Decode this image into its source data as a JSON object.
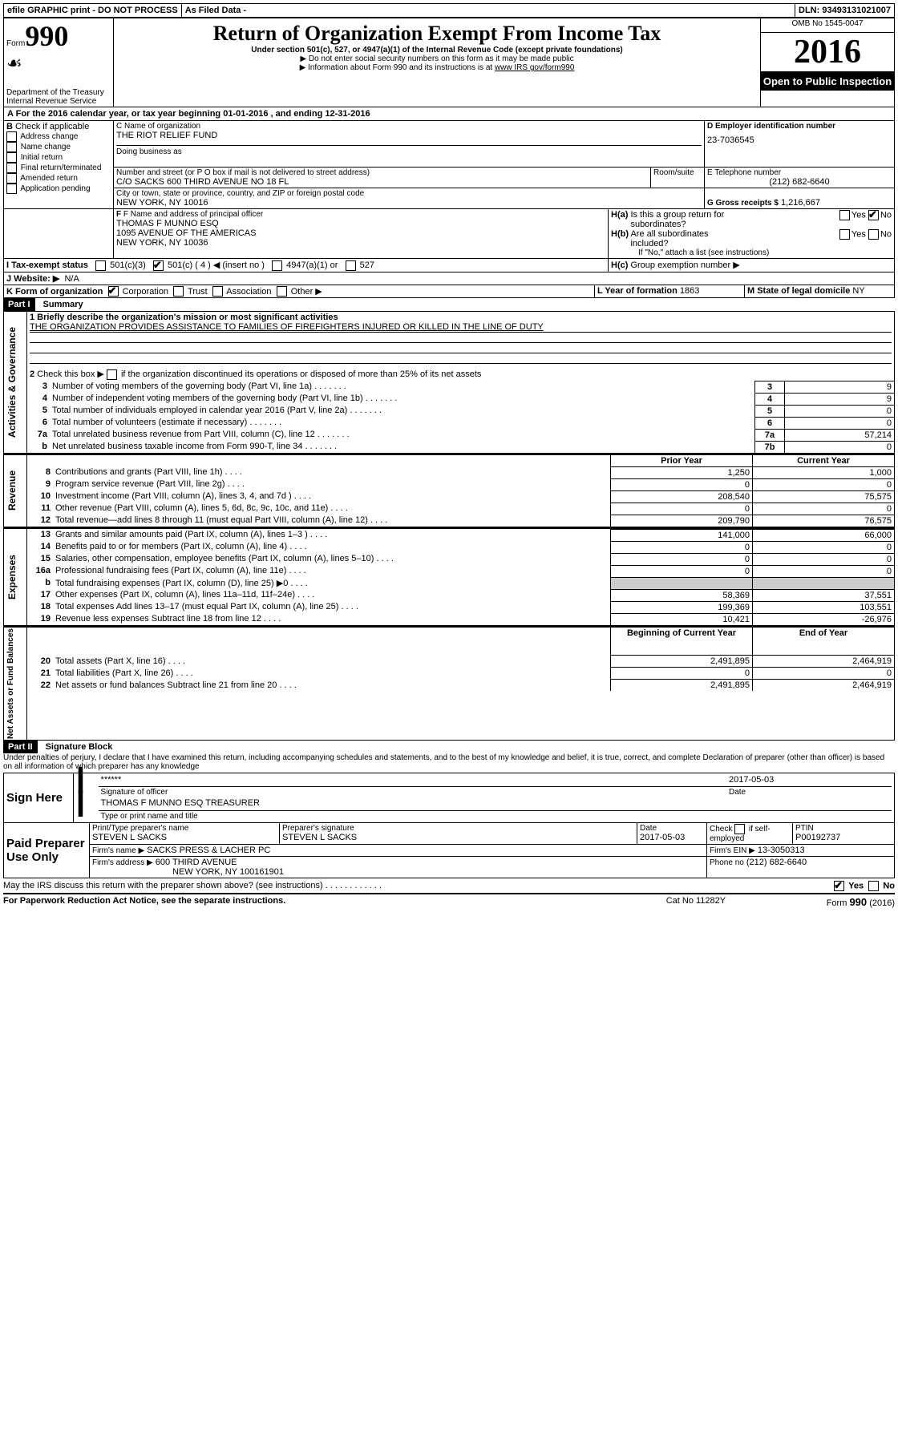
{
  "top": {
    "efile": "efile GRAPHIC print - DO NOT PROCESS",
    "asfiled": "As Filed Data - ",
    "dln_label": "DLN:",
    "dln": "93493131021007"
  },
  "hdr": {
    "form": "Form",
    "form_no": "990",
    "dept1": "Department of the Treasury",
    "dept2": "Internal Revenue Service",
    "title": "Return of Organization Exempt From Income Tax",
    "sub1": "Under section 501(c), 527, or 4947(a)(1) of the Internal Revenue Code (except private foundations)",
    "sub2": "▶ Do not enter social security numbers on this form as it may be made public",
    "sub3_pre": "▶ Information about Form 990 and its instructions is at ",
    "sub3_link": "www IRS gov/form990",
    "omb": "OMB No  1545-0047",
    "year": "2016",
    "open": "Open to Public Inspection"
  },
  "A": {
    "text": "For the 2016 calendar year, or tax year beginning 01-01-2016   , and ending 12-31-2016"
  },
  "B": {
    "label": "B",
    "check": "Check if applicable",
    "opts": [
      "Address change",
      "Name change",
      "Initial return",
      "Final return/terminated",
      "Amended return",
      "Application pending"
    ]
  },
  "C": {
    "name_lbl": "C Name of organization",
    "name": "THE RIOT RELIEF FUND",
    "dba_lbl": "Doing business as",
    "addr_lbl": "Number and street (or P O  box if mail is not delivered to street address)",
    "room_lbl": "Room/suite",
    "addr": "C/O SACKS 600 THIRD AVENUE NO 18 FL",
    "city_lbl": "City or town, state or province, country, and ZIP or foreign postal code",
    "city": "NEW YORK, NY  10016"
  },
  "D": {
    "lbl": "D Employer identification number",
    "val": "23-7036545"
  },
  "E": {
    "lbl": "E Telephone number",
    "val": "(212) 682-6640"
  },
  "G": {
    "lbl": "G Gross receipts $",
    "val": "1,216,667"
  },
  "F": {
    "lbl": "F  Name and address of principal officer",
    "l1": "THOMAS F MUNNO ESQ",
    "l2": "1095 AVENUE OF THE AMERICAS",
    "l3": "NEW YORK, NY  10036"
  },
  "H": {
    "a": "H(a)  Is this a group return for subordinates?",
    "b": "H(b)  Are all subordinates included?",
    "note": "If \"No,\" attach a list  (see instructions)",
    "c": "H(c)  Group exemption number ▶",
    "yes": "Yes",
    "no": "No"
  },
  "I": {
    "lbl": "I   Tax-exempt status",
    "o1": "501(c)(3)",
    "o2": "501(c) ( 4 ) ◀ (insert no )",
    "o3": "4947(a)(1) or",
    "o4": "527"
  },
  "J": {
    "lbl": "J   Website: ▶",
    "val": "N/A"
  },
  "K": {
    "lbl": "K Form of organization",
    "o1": "Corporation",
    "o2": "Trust",
    "o3": "Association",
    "o4": "Other ▶"
  },
  "L": {
    "lbl": "L Year of formation",
    "val": "1863"
  },
  "M": {
    "lbl": "M State of legal domicile",
    "val": "NY"
  },
  "partI": {
    "hdr": "Part I",
    "title": "Summary"
  },
  "sum": {
    "line1": "1 Briefly describe the organization's mission or most significant activities",
    "mission": "THE ORGANIZATION PROVIDES ASSISTANCE TO FAMILIES OF FIREFIGHTERS INJURED OR KILLED IN THE LINE OF DUTY",
    "line2": "2   Check this box ▶          if the organization discontinued its operations or disposed of more than 25% of its net assets",
    "rows_gov": [
      {
        "n": "3",
        "t": "Number of voting members of the governing body (Part VI, line 1a)",
        "box": "3",
        "v": "9"
      },
      {
        "n": "4",
        "t": "Number of independent voting members of the governing body (Part VI, line 1b)",
        "box": "4",
        "v": "9"
      },
      {
        "n": "5",
        "t": "Total number of individuals employed in calendar year 2016 (Part V, line 2a)",
        "box": "5",
        "v": "0"
      },
      {
        "n": "6",
        "t": "Total number of volunteers (estimate if necessary)",
        "box": "6",
        "v": "0"
      },
      {
        "n": "7a",
        "t": "Total unrelated business revenue from Part VIII, column (C), line 12",
        "box": "7a",
        "v": "57,214"
      },
      {
        "n": "b",
        "t": "Net unrelated business taxable income from Form 990-T, line 34",
        "box": "7b",
        "v": "0"
      }
    ],
    "col_prior": "Prior Year",
    "col_curr": "Current Year",
    "revenue": [
      {
        "n": "8",
        "t": "Contributions and grants (Part VIII, line 1h)",
        "p": "1,250",
        "c": "1,000"
      },
      {
        "n": "9",
        "t": "Program service revenue (Part VIII, line 2g)",
        "p": "0",
        "c": "0"
      },
      {
        "n": "10",
        "t": "Investment income (Part VIII, column (A), lines 3, 4, and 7d )",
        "p": "208,540",
        "c": "75,575"
      },
      {
        "n": "11",
        "t": "Other revenue (Part VIII, column (A), lines 5, 6d, 8c, 9c, 10c, and 11e)",
        "p": "0",
        "c": "0"
      },
      {
        "n": "12",
        "t": "Total revenue—add lines 8 through 11 (must equal Part VIII, column (A), line 12)",
        "p": "209,790",
        "c": "76,575"
      }
    ],
    "expenses": [
      {
        "n": "13",
        "t": "Grants and similar amounts paid (Part IX, column (A), lines 1–3 )",
        "p": "141,000",
        "c": "66,000"
      },
      {
        "n": "14",
        "t": "Benefits paid to or for members (Part IX, column (A), line 4)",
        "p": "0",
        "c": "0"
      },
      {
        "n": "15",
        "t": "Salaries, other compensation, employee benefits (Part IX, column (A), lines 5–10)",
        "p": "0",
        "c": "0"
      },
      {
        "n": "16a",
        "t": "Professional fundraising fees (Part IX, column (A), line 11e)",
        "p": "0",
        "c": "0"
      },
      {
        "n": "b",
        "t": "Total fundraising expenses (Part IX, column (D), line 25) ▶0",
        "p": "",
        "c": ""
      },
      {
        "n": "17",
        "t": "Other expenses (Part IX, column (A), lines 11a–11d, 11f–24e)",
        "p": "58,369",
        "c": "37,551"
      },
      {
        "n": "18",
        "t": "Total expenses  Add lines 13–17 (must equal Part IX, column (A), line 25)",
        "p": "199,369",
        "c": "103,551"
      },
      {
        "n": "19",
        "t": "Revenue less expenses  Subtract line 18 from line 12",
        "p": "10,421",
        "c": "-26,976"
      }
    ],
    "col_beg": "Beginning of Current Year",
    "col_end": "End of Year",
    "net": [
      {
        "n": "20",
        "t": "Total assets (Part X, line 16)",
        "p": "2,491,895",
        "c": "2,464,919"
      },
      {
        "n": "21",
        "t": "Total liabilities (Part X, line 26)",
        "p": "0",
        "c": "0"
      },
      {
        "n": "22",
        "t": "Net assets or fund balances  Subtract line 21 from line 20",
        "p": "2,491,895",
        "c": "2,464,919"
      }
    ],
    "side_gov": "Activities & Governance",
    "side_rev": "Revenue",
    "side_exp": "Expenses",
    "side_net": "Net Assets or Fund Balances"
  },
  "partII": {
    "hdr": "Part II",
    "title": "Signature Block",
    "decl": "Under penalties of perjury, I declare that I have examined this return, including accompanying schedules and statements, and to the best of my knowledge and belief, it is true, correct, and complete  Declaration of preparer (other than officer) is based on all information of which preparer has any knowledge"
  },
  "sign": {
    "side": "Sign Here",
    "stars": "******",
    "sig_lbl": "Signature of officer",
    "date": "2017-05-03",
    "date_lbl": "Date",
    "name": "THOMAS F MUNNO ESQ  TREASURER",
    "name_lbl": "Type or print name and title"
  },
  "paid": {
    "side": "Paid Preparer Use Only",
    "prep_name_lbl": "Print/Type preparer's name",
    "prep_name": "STEVEN L SACKS",
    "prep_sig_lbl": "Preparer's signature",
    "prep_sig": "STEVEN L SACKS",
    "prep_date_lbl": "Date",
    "prep_date": "2017-05-03",
    "check_lbl": "Check          if self-employed",
    "ptin_lbl": "PTIN",
    "ptin": "P00192737",
    "firm_name_lbl": "Firm's name      ▶",
    "firm_name": "SACKS PRESS & LACHER PC",
    "firm_ein_lbl": "Firm's EIN ▶",
    "firm_ein": "13-3050313",
    "firm_addr_lbl": "Firm's address ▶",
    "firm_addr1": "600 THIRD AVENUE",
    "firm_addr2": "NEW YORK, NY  100161901",
    "phone_lbl": "Phone no",
    "phone": "(212) 682-6640"
  },
  "foot": {
    "discuss": "May the IRS discuss this return with the preparer shown above? (see instructions)",
    "yes": "Yes",
    "no": "No",
    "paperwork": "For Paperwork Reduction Act Notice, see the separate instructions.",
    "cat": "Cat  No  11282Y",
    "formno": "Form 990 (2016)"
  }
}
